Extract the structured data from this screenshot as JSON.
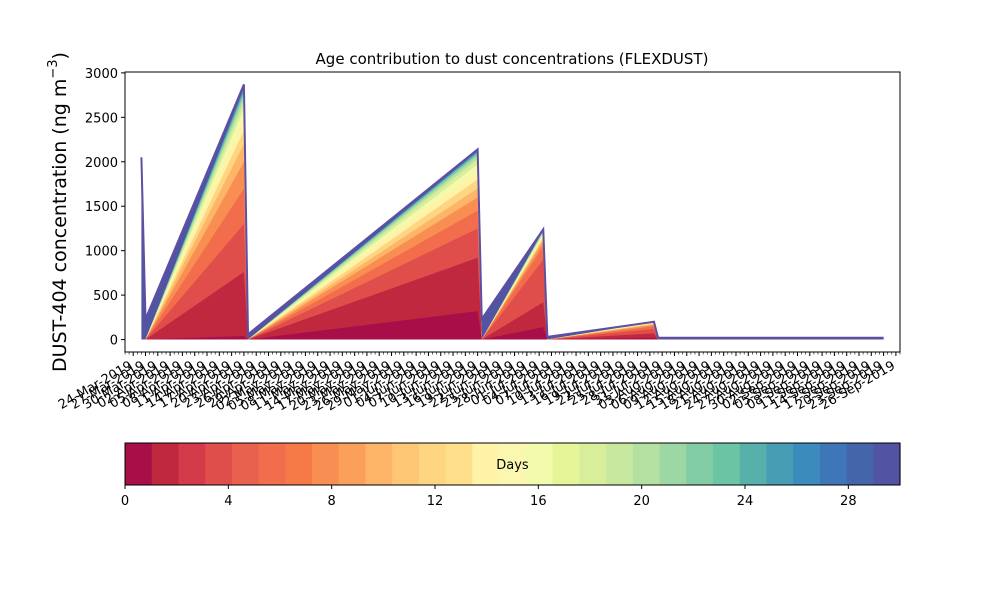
{
  "chart_data": [
    {
      "type": "area",
      "title": "Age contribution to dust concentrations (FLEXDUST)",
      "ylabel": "DUST-404 concentration (ng m",
      "ylabel_superscript": "−3",
      "ylabel_close": ")",
      "ylim": [
        -140,
        3010
      ],
      "xlim": [
        "2019-03-22",
        "2019-09-27"
      ],
      "yticks": [
        0,
        500,
        1000,
        1500,
        2000,
        2500,
        3000
      ],
      "ytick_labels": [
        "0",
        "500",
        "1000",
        "1500",
        "2000",
        "2500",
        "3000"
      ],
      "xtick_start": "2019-03-24",
      "xtick_step_days": 3,
      "xtick_labels": [
        "24-Mar-2019",
        "27-Mar-2019",
        "30-Mar-2019",
        "02-Apr-2019",
        "05-Apr-2019",
        "08-Apr-2019",
        "11-Apr-2019",
        "14-Apr-2019",
        "17-Apr-2019",
        "20-Apr-2019",
        "23-Apr-2019",
        "26-Apr-2019",
        "29-Apr-2019",
        "02-May-2019",
        "05-May-2019",
        "08-May-2019",
        "11-May-2019",
        "14-May-2019",
        "17-May-2019",
        "20-May-2019",
        "23-May-2019",
        "26-May-2019",
        "29-May-2019",
        "01-Jun-2019",
        "04-Jun-2019",
        "07-Jun-2019",
        "10-Jun-2019",
        "13-Jun-2019",
        "16-Jun-2019",
        "19-Jun-2019",
        "22-Jun-2019",
        "25-Jun-2019",
        "28-Jun-2019",
        "01-Jul-2019",
        "04-Jul-2019",
        "07-Jul-2019",
        "10-Jul-2019",
        "13-Jul-2019",
        "16-Jul-2019",
        "19-Jul-2019",
        "22-Jul-2019",
        "25-Jul-2019",
        "28-Jul-2019",
        "31-Jul-2019",
        "03-Aug-2019",
        "06-Aug-2019",
        "09-Aug-2019",
        "12-Aug-2019",
        "15-Aug-2019",
        "18-Aug-2019",
        "21-Aug-2019",
        "24-Aug-2019",
        "27-Aug-2019",
        "30-Aug-2019",
        "02-Sep-2019",
        "05-Sep-2019",
        "08-Sep-2019",
        "11-Sep-2019",
        "14-Sep-2019",
        "17-Sep-2019",
        "20-Sep-2019",
        "23-Sep-2019",
        "26-Sep-2019"
      ],
      "x": [
        "2019-03-26",
        "2019-03-27",
        "2019-04-20",
        "2019-04-21",
        "2019-06-16",
        "2019-06-17",
        "2019-07-02",
        "2019-07-03",
        "2019-07-29",
        "2019-07-30",
        "2019-09-23"
      ],
      "total": [
        2050,
        230,
        2870,
        60,
        2140,
        230,
        1240,
        30,
        200,
        20,
        20
      ],
      "bands": [
        {
          "days": 1,
          "values": [
            0,
            0,
            40,
            0,
            320,
            0,
            140,
            0,
            20,
            0,
            0
          ]
        },
        {
          "days": 2,
          "values": [
            0,
            0,
            760,
            0,
            920,
            0,
            420,
            0,
            70,
            0,
            0
          ]
        },
        {
          "days": 4,
          "values": [
            0,
            0,
            1300,
            0,
            1250,
            0,
            900,
            0,
            120,
            0,
            0
          ]
        },
        {
          "days": 6,
          "values": [
            0,
            0,
            1700,
            0,
            1450,
            0,
            1050,
            0,
            150,
            0,
            0
          ]
        },
        {
          "days": 8,
          "values": [
            0,
            0,
            2000,
            0,
            1600,
            0,
            1100,
            0,
            165,
            0,
            0
          ]
        },
        {
          "days": 10,
          "values": [
            0,
            0,
            2200,
            0,
            1700,
            0,
            1130,
            0,
            175,
            0,
            0
          ]
        },
        {
          "days": 12,
          "values": [
            0,
            0,
            2350,
            0,
            1800,
            0,
            1150,
            0,
            182,
            0,
            0
          ]
        },
        {
          "days": 14,
          "values": [
            0,
            0,
            2500,
            0,
            1900,
            0,
            1170,
            0,
            188,
            0,
            0
          ]
        },
        {
          "days": 16,
          "values": [
            0,
            0,
            2600,
            0,
            1970,
            0,
            1190,
            0,
            192,
            0,
            0
          ]
        },
        {
          "days": 18,
          "values": [
            0,
            0,
            2680,
            0,
            2030,
            0,
            1205,
            0,
            195,
            0,
            0
          ]
        },
        {
          "days": 20,
          "values": [
            0,
            0,
            2740,
            0,
            2070,
            0,
            1215,
            0,
            197,
            0,
            0
          ]
        },
        {
          "days": 22,
          "values": [
            0,
            0,
            2790,
            0,
            2100,
            0,
            1225,
            0,
            198,
            0,
            0
          ]
        },
        {
          "days": 25,
          "values": [
            0,
            0,
            2830,
            0,
            2120,
            0,
            1232,
            0,
            199,
            0,
            0
          ]
        }
      ],
      "line_color": "#5e4fa2"
    },
    {
      "type": "colorbar",
      "label": "Days",
      "range": [
        0,
        30
      ],
      "ticks": [
        0,
        4,
        8,
        12,
        16,
        20,
        24,
        28
      ],
      "tick_labels": [
        "0",
        "4",
        "8",
        "12",
        "16",
        "20",
        "24",
        "28"
      ],
      "colors": [
        "#a80f48",
        "#c0283f",
        "#d33a4a",
        "#df4e4b",
        "#e8614e",
        "#f26d4c",
        "#f57a47",
        "#f98e52",
        "#fba05b",
        "#fdb567",
        "#fdc776",
        "#fed683",
        "#fee08b",
        "#fff3a8",
        "#fbf7b0",
        "#f2faac",
        "#e6f598",
        "#d8ee9b",
        "#c7e89e",
        "#b4e0a2",
        "#9cd7a4",
        "#82cca5",
        "#6bc4a4",
        "#57b1aa",
        "#479eb4",
        "#3b8bbd",
        "#3d77b7",
        "#4565ab",
        "#5254a3"
      ]
    }
  ]
}
